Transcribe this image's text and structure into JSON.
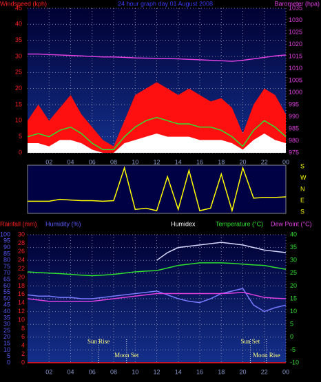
{
  "chart_data": [
    {
      "type": "line",
      "title": "24 hour graph day 01 August 2008",
      "title_color": "#3a3aff",
      "y_label": "Windspeed (kph)",
      "y_label_color": "#ff2020",
      "y2_label": "Barometer (hpa)",
      "y2_label_color": "#e040e0",
      "x": [
        0,
        1,
        2,
        3,
        4,
        5,
        6,
        7,
        8,
        9,
        10,
        11,
        12,
        13,
        14,
        15,
        16,
        17,
        18,
        19,
        20,
        21,
        22,
        23,
        24
      ],
      "xlim": [
        0,
        24
      ],
      "xticks": [
        {
          "value": 2,
          "label": "02"
        },
        {
          "value": 4,
          "label": "04"
        },
        {
          "value": 6,
          "label": "06"
        },
        {
          "value": 8,
          "label": "08"
        },
        10,
        12,
        14,
        16,
        18,
        20,
        22,
        {
          "value": 24,
          "label": "00"
        }
      ],
      "ylim": [
        0,
        45
      ],
      "yticks": [
        0,
        5,
        10,
        15,
        20,
        25,
        30,
        35,
        40,
        45
      ],
      "ycolor": "#ff2020",
      "y2lim": [
        975,
        1035
      ],
      "y2ticks": [
        975,
        980,
        985,
        990,
        995,
        1000,
        1005,
        1010,
        1015,
        1020,
        1025,
        1030,
        1035
      ],
      "y2color": "#e040e0",
      "grid": true,
      "grid_axis": "y",
      "series": [
        {
          "style": "area",
          "color": "#ff1010",
          "axis": "y",
          "values": [
            10,
            15,
            10,
            14,
            18,
            12,
            8,
            4,
            2,
            10,
            18,
            20,
            22,
            20,
            18,
            20,
            18,
            16,
            17,
            14,
            6,
            15,
            20,
            18,
            12
          ]
        },
        {
          "style": "area",
          "color": "#ffffff",
          "axis": "y",
          "values": [
            3,
            3,
            2,
            4,
            4,
            3,
            1,
            0,
            0,
            3,
            4,
            5,
            6,
            5,
            5,
            5,
            4,
            4,
            4,
            3,
            1,
            4,
            6,
            4,
            3
          ]
        },
        {
          "style": "line",
          "color": "#30e030",
          "axis": "y",
          "values": [
            5,
            6,
            5,
            7,
            8,
            6,
            3,
            1,
            1,
            5,
            8,
            10,
            11,
            10,
            9,
            9,
            8,
            8,
            7,
            5,
            2,
            7,
            10,
            8,
            5
          ]
        },
        {
          "style": "line",
          "color": "#e040e0",
          "axis": "y2",
          "values": [
            1016,
            1016,
            1015.8,
            1015.6,
            1015.4,
            1015.2,
            1015,
            1014.8,
            1014.8,
            1014.6,
            1014.4,
            1014.3,
            1014.2,
            1014.1,
            1014,
            1013.8,
            1013.6,
            1013.4,
            1013.2,
            1013,
            1013.4,
            1014,
            1014.6,
            1015.2,
            1015.6
          ]
        }
      ]
    },
    {
      "type": "line",
      "x": [
        0,
        1,
        2,
        3,
        4,
        5,
        6,
        7,
        8,
        9,
        10,
        11,
        12,
        13,
        14,
        15,
        16,
        17,
        18,
        19,
        20,
        21,
        22,
        23,
        24
      ],
      "xlim": [
        0,
        24
      ],
      "ylim": [
        180,
        -180
      ],
      "yticks": [
        {
          "value": 180,
          "label": "S"
        },
        {
          "value": 90,
          "label": "E"
        },
        {
          "value": 0,
          "label": "N"
        },
        {
          "value": -90,
          "label": "W"
        },
        {
          "value": -180,
          "label": "S"
        }
      ],
      "ycolor": "#ffff00",
      "series": [
        {
          "style": "line",
          "color": "#ffff00",
          "axis": "y",
          "values": [
            95,
            95,
            95,
            80,
            85,
            90,
            90,
            95,
            90,
            -170,
            160,
            150,
            170,
            -100,
            160,
            -150,
            170,
            150,
            -120,
            170,
            -170,
            70,
            65,
            65,
            60
          ]
        }
      ]
    },
    {
      "type": "line",
      "header_labels": [
        {
          "text": "Rainfall (mm)",
          "color": "#ff2020"
        },
        {
          "text": "Humidity (%)",
          "color": "#5a5aff"
        },
        {
          "text": "Humidex",
          "color": "#ffffff"
        },
        {
          "text": "Temperature (°C)",
          "color": "#30e030"
        },
        {
          "text": "Dew Point (°C)",
          "color": "#e040e0"
        }
      ],
      "x": [
        0,
        1,
        2,
        3,
        4,
        5,
        6,
        7,
        8,
        9,
        10,
        11,
        12,
        13,
        14,
        15,
        16,
        17,
        18,
        19,
        20,
        21,
        22,
        23,
        24
      ],
      "xlim": [
        0,
        24
      ],
      "xticks": [
        {
          "value": 2,
          "label": "02"
        },
        {
          "value": 4,
          "label": "04"
        },
        {
          "value": 6,
          "label": "06"
        },
        {
          "value": 8,
          "label": "08"
        },
        10,
        12,
        14,
        16,
        18,
        20,
        22,
        {
          "value": 24,
          "label": "00"
        }
      ],
      "ylim": [
        0,
        100
      ],
      "yticks": [
        0,
        5,
        10,
        15,
        20,
        25,
        30,
        35,
        40,
        45,
        50,
        55,
        60,
        65,
        70,
        75,
        80,
        85,
        90,
        95,
        100
      ],
      "ycolor": "#5a5aff",
      "y3lim": [
        0,
        30
      ],
      "y3ticks": [
        0,
        2,
        4,
        6,
        8,
        10,
        12,
        14,
        16,
        18,
        20,
        22,
        24,
        26,
        28,
        30
      ],
      "y3color": "#ff2020",
      "y2lim": [
        -10,
        40
      ],
      "y2ticks": [
        -10,
        -5,
        0,
        5,
        10,
        15,
        20,
        25,
        30,
        35,
        40
      ],
      "y2color": "#30e030",
      "grid": true,
      "grid_axis": "y2",
      "annotations": [
        {
          "text": "Sun Rise",
          "x": 6.6
        },
        {
          "text": "Moon Set",
          "x": 9.2
        },
        {
          "text": "Sun Set",
          "x": 20.7
        },
        {
          "text": "Moon Rise",
          "x": 22.2
        }
      ],
      "series": [
        {
          "style": "line",
          "color": "#ff1010",
          "axis": "y3",
          "values": [
            0,
            0,
            0,
            0,
            0,
            0,
            0,
            0,
            0,
            0,
            0,
            0,
            0,
            0,
            0,
            0,
            0,
            0,
            0,
            0,
            0,
            0,
            0,
            0,
            0
          ]
        },
        {
          "style": "line",
          "color": "#7a7aff",
          "axis": "y",
          "values": [
            53,
            52,
            52,
            51,
            51,
            50,
            50,
            51,
            52,
            53,
            54,
            55,
            56,
            53,
            50,
            48,
            47,
            50,
            54,
            56,
            58,
            45,
            40,
            43,
            45
          ]
        },
        {
          "style": "line",
          "color": "#d8d8ff",
          "axis": "y2",
          "values": [
            null,
            null,
            null,
            null,
            null,
            null,
            null,
            null,
            null,
            null,
            null,
            null,
            30,
            33,
            35,
            35.5,
            36,
            36.5,
            37,
            36.5,
            36,
            35,
            34,
            33.5,
            33
          ]
        },
        {
          "style": "line",
          "color": "#30e030",
          "axis": "y2",
          "values": [
            25.5,
            25.2,
            25,
            24.8,
            24.5,
            24.2,
            24,
            24.2,
            24.5,
            25,
            25.5,
            25.8,
            26,
            27,
            28,
            28.5,
            29,
            29,
            29,
            28.8,
            28.5,
            28.2,
            28,
            27.2,
            26.5
          ]
        },
        {
          "style": "line",
          "color": "#e040e0",
          "axis": "y2",
          "values": [
            15,
            14.5,
            14,
            14,
            14,
            14,
            14,
            14.5,
            15,
            15.5,
            16,
            16.5,
            17,
            17,
            17,
            17,
            17,
            17,
            17,
            17.2,
            17.5,
            16.5,
            15.5,
            15.2,
            15
          ]
        }
      ]
    }
  ]
}
